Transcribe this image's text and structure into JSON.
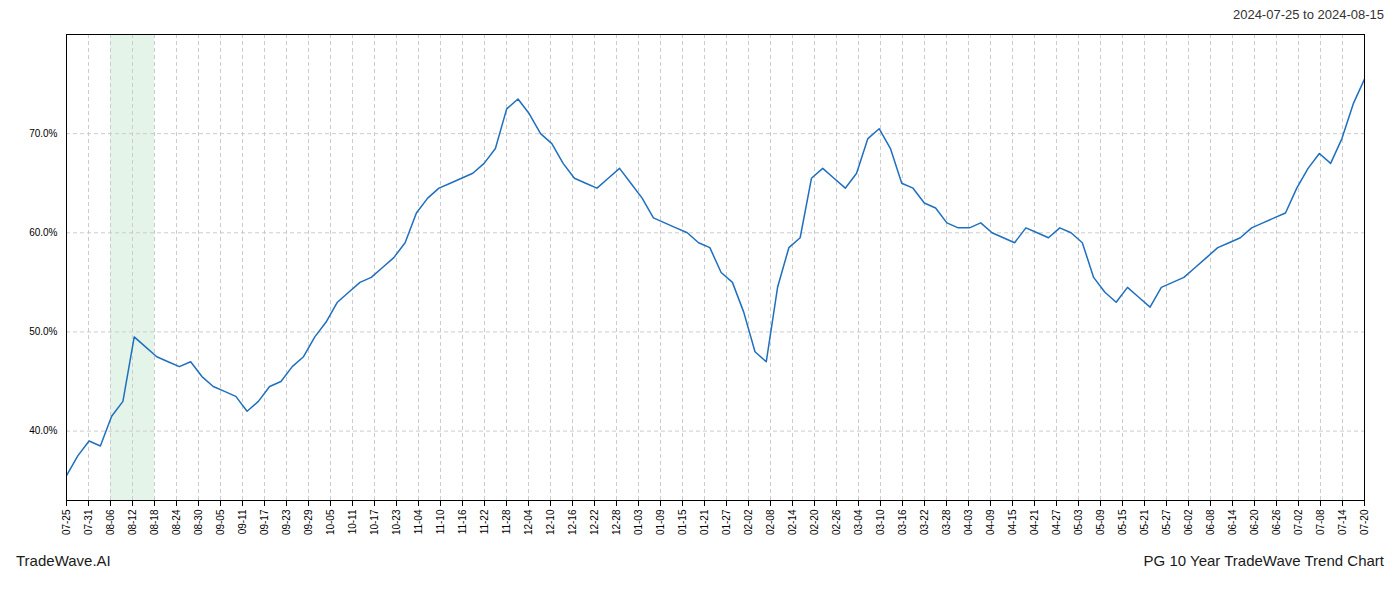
{
  "chart_data": {
    "type": "line",
    "title": "PG 10 Year TradeWave Trend Chart",
    "subtitle": "2024-07-25 to 2024-08-15",
    "annotations": [
      "TradeWave.AI"
    ],
    "color": "#1f6fbf",
    "values": [
      35.5,
      37.5,
      39.0,
      38.5,
      41.5,
      43.0,
      49.5,
      48.5,
      47.5,
      47.0,
      46.5,
      47.0,
      45.5,
      44.5,
      44.0,
      43.5,
      42.0,
      43.0,
      44.5,
      45.0,
      46.5,
      47.5,
      49.5,
      51.0,
      53.0,
      54.0,
      55.0,
      55.5,
      56.5,
      57.5,
      59.0,
      62.0,
      63.5,
      64.5,
      65.0,
      65.5,
      66.0,
      67.0,
      68.5,
      72.5,
      73.5,
      72.0,
      70.0,
      69.0,
      67.0,
      65.5,
      65.0,
      64.5,
      65.5,
      66.5,
      65.0,
      63.5,
      61.5,
      61.0,
      60.5,
      60.0,
      59.0,
      58.5,
      56.0,
      55.0,
      52.0,
      48.0,
      47.0,
      54.5,
      58.5,
      59.5,
      65.5,
      66.5,
      65.5,
      64.5,
      66.0,
      69.5,
      70.5,
      68.5,
      65.0,
      64.5,
      63.0,
      62.5,
      61.0,
      60.5,
      60.5,
      61.0,
      60.0,
      59.5,
      59.0,
      60.5,
      60.0,
      59.5,
      60.5,
      60.0,
      59.0,
      55.5,
      54.0,
      53.0,
      54.5,
      53.5,
      52.5,
      54.5,
      55.0,
      55.5,
      56.5,
      57.5,
      58.5,
      59.0,
      59.5,
      60.5,
      61.0,
      61.5,
      62.0,
      64.5,
      66.5,
      68.0,
      67.0,
      69.5,
      73.0,
      75.5
    ],
    "xlim": [
      0,
      115
    ],
    "xticks": [
      {
        "value": 0,
        "label": "07-25"
      },
      {
        "value": 1.9492,
        "label": "07-31"
      },
      {
        "value": 3.8983,
        "label": "08-06"
      },
      {
        "value": 5.8475,
        "label": "08-12"
      },
      {
        "value": 7.7966,
        "label": "08-18"
      },
      {
        "value": 9.7458,
        "label": "08-24"
      },
      {
        "value": 11.6949,
        "label": "08-30"
      },
      {
        "value": 13.6441,
        "label": "09-05"
      },
      {
        "value": 15.5932,
        "label": "09-11"
      },
      {
        "value": 17.5424,
        "label": "09-17"
      },
      {
        "value": 19.4915,
        "label": "09-23"
      },
      {
        "value": 21.4407,
        "label": "09-29"
      },
      {
        "value": 23.3898,
        "label": "10-05"
      },
      {
        "value": 25.339,
        "label": "10-11"
      },
      {
        "value": 27.2881,
        "label": "10-17"
      },
      {
        "value": 29.2373,
        "label": "10-23"
      },
      {
        "value": 31.1864,
        "label": "11-04"
      },
      {
        "value": 33.1356,
        "label": "11-10"
      },
      {
        "value": 35.0847,
        "label": "11-16"
      },
      {
        "value": 37.0339,
        "label": "11-22"
      },
      {
        "value": 38.9831,
        "label": "11-28"
      },
      {
        "value": 40.9322,
        "label": "12-04"
      },
      {
        "value": 42.8814,
        "label": "12-10"
      },
      {
        "value": 44.8305,
        "label": "12-16"
      },
      {
        "value": 46.7797,
        "label": "12-22"
      },
      {
        "value": 48.7288,
        "label": "12-28"
      },
      {
        "value": 50.678,
        "label": "01-03"
      },
      {
        "value": 52.6271,
        "label": "01-09"
      },
      {
        "value": 54.5763,
        "label": "01-15"
      },
      {
        "value": 56.5254,
        "label": "01-21"
      },
      {
        "value": 58.4746,
        "label": "01-27"
      },
      {
        "value": 60.4237,
        "label": "02-02"
      },
      {
        "value": 62.3729,
        "label": "02-08"
      },
      {
        "value": 64.322,
        "label": "02-14"
      },
      {
        "value": 66.2712,
        "label": "02-20"
      },
      {
        "value": 68.2203,
        "label": "02-26"
      },
      {
        "value": 70.1695,
        "label": "03-04"
      },
      {
        "value": 72.1186,
        "label": "03-10"
      },
      {
        "value": 74.0678,
        "label": "03-16"
      },
      {
        "value": 76.0169,
        "label": "03-22"
      },
      {
        "value": 77.9661,
        "label": "03-28"
      },
      {
        "value": 79.9153,
        "label": "04-03"
      },
      {
        "value": 81.8644,
        "label": "04-09"
      },
      {
        "value": 83.8136,
        "label": "04-15"
      },
      {
        "value": 85.7627,
        "label": "04-21"
      },
      {
        "value": 87.7119,
        "label": "04-27"
      },
      {
        "value": 89.661,
        "label": "05-03"
      },
      {
        "value": 91.6102,
        "label": "05-09"
      },
      {
        "value": 93.5593,
        "label": "05-15"
      },
      {
        "value": 95.5085,
        "label": "05-21"
      },
      {
        "value": 97.4576,
        "label": "05-27"
      },
      {
        "value": 99.4068,
        "label": "06-02"
      },
      {
        "value": 101.3559,
        "label": "06-08"
      },
      {
        "value": 103.3051,
        "label": "06-14"
      },
      {
        "value": 105.2542,
        "label": "06-20"
      },
      {
        "value": 107.2034,
        "label": "06-26"
      },
      {
        "value": 109.1525,
        "label": "07-02"
      },
      {
        "value": 111.1017,
        "label": "07-08"
      },
      {
        "value": 113.0508,
        "label": "07-14"
      },
      {
        "value": 115,
        "label": "07-20"
      }
    ],
    "ylim": [
      33,
      80
    ],
    "yticks": [
      {
        "value": 40,
        "label": "40.0%"
      },
      {
        "value": 50,
        "label": "50.0%"
      },
      {
        "value": 60,
        "label": "60.0%"
      },
      {
        "value": 70,
        "label": "70.0%"
      }
    ],
    "grid": true,
    "shade": {
      "x0": 3.8983,
      "x1": 7.7966,
      "color": "#d4edda"
    }
  }
}
